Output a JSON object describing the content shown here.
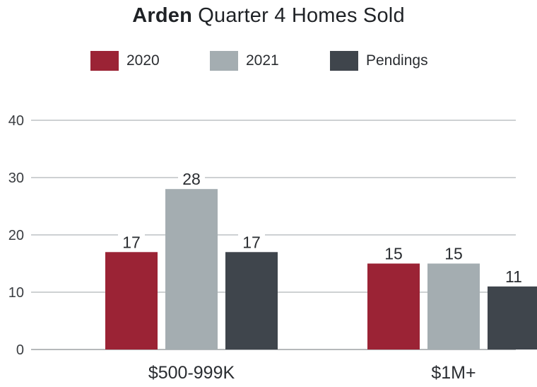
{
  "title": {
    "bold": "Arden",
    "rest": " Quarter 4 Homes Sold"
  },
  "legend": [
    {
      "label": "2020",
      "color": "#9b2335"
    },
    {
      "label": "2021",
      "color": "#a4adb1"
    },
    {
      "label": "Pendings",
      "color": "#3f454c"
    }
  ],
  "chart_data": {
    "type": "bar",
    "title": "Arden Quarter 4 Homes Sold",
    "categories": [
      "$500-999K",
      "$1M+"
    ],
    "series": [
      {
        "name": "2020",
        "values": [
          17,
          15
        ],
        "color": "#9b2335"
      },
      {
        "name": "2021",
        "values": [
          28,
          15
        ],
        "color": "#a4adb1"
      },
      {
        "name": "Pendings",
        "values": [
          17,
          11
        ],
        "color": "#3f454c"
      }
    ],
    "yticks": [
      "0",
      "10",
      "20",
      "30",
      "40"
    ],
    "ylim": [
      0,
      40
    ],
    "grid": true,
    "legend_position": "top-center",
    "data_labels": true
  }
}
